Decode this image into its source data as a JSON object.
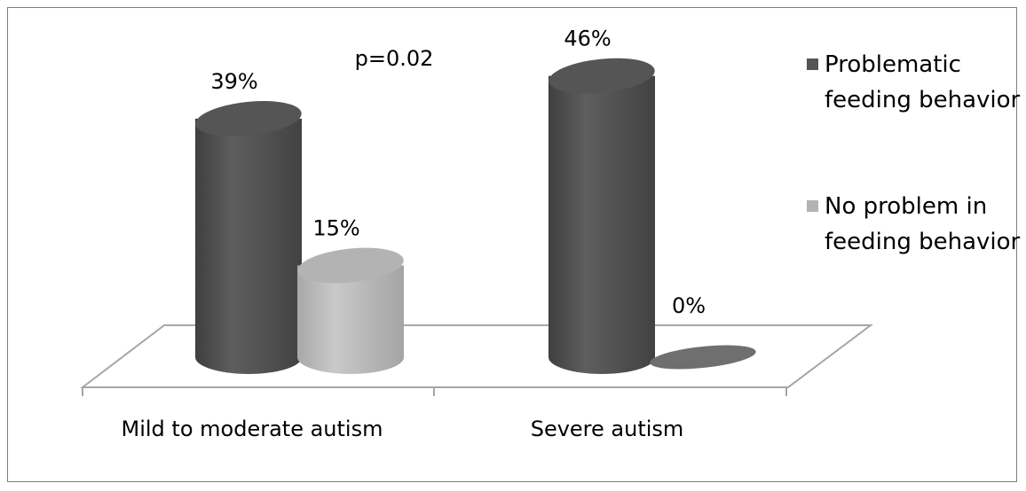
{
  "chart_data": {
    "type": "bar",
    "style": "3d-cylinder",
    "categories": [
      "Mild to moderate autism",
      "Severe autism"
    ],
    "series": [
      {
        "name": "Problematic feeding behavior",
        "values": [
          39,
          46.0
        ],
        "labels": [
          "39%",
          "46%"
        ],
        "color": "#555555"
      },
      {
        "name": "No problem in feeding behavior",
        "values": [
          15,
          0
        ],
        "labels": [
          "15%",
          "0%"
        ],
        "color": "#b3b3b3"
      }
    ],
    "unit": "%",
    "ylim": [
      0,
      46
    ],
    "grid": false,
    "legend_position": "right",
    "annotations": [
      "p=0.02"
    ]
  },
  "legend": {
    "items": [
      {
        "lines": [
          "Problematic",
          "feeding behavior"
        ],
        "color": "#555555"
      },
      {
        "lines": [
          "No problem in",
          "feeding behavior"
        ],
        "color": "#b3b3b3"
      }
    ]
  },
  "annotation": {
    "pvalue": "p=0.02"
  }
}
